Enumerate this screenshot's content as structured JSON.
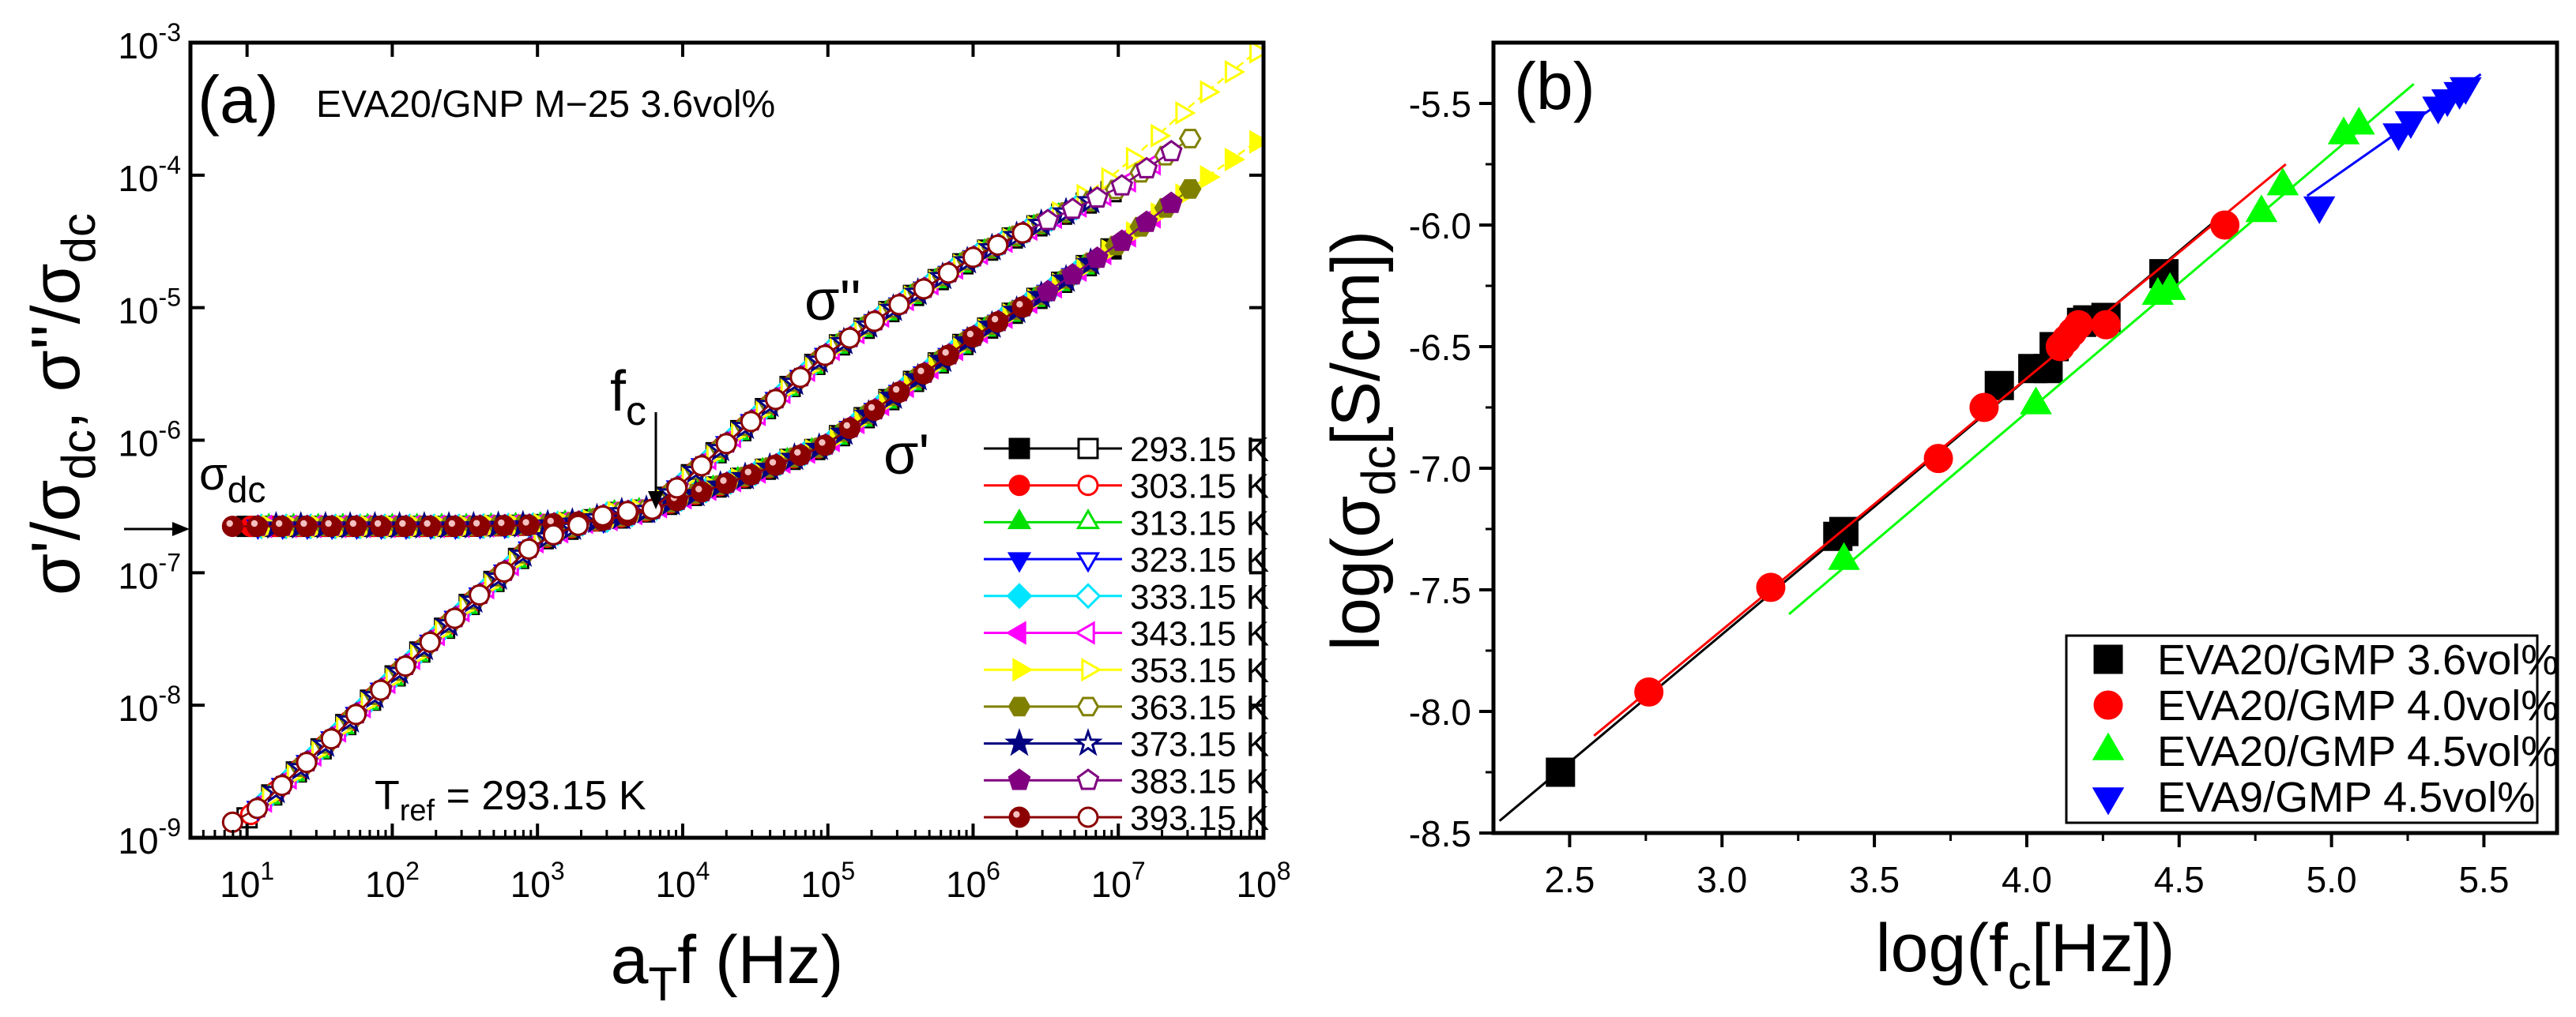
{
  "chart_data": [
    {
      "panel": "(a)",
      "type": "scatter",
      "title": "EVA20/GNP M−25 3.6vol%",
      "xlabel": "a_T f (Hz)",
      "ylabel": "σ'/σdc, σ''/σdc",
      "xscale": "log",
      "yscale": "log",
      "xlim_log10": [
        0.61,
        8
      ],
      "ylim_log10": [
        -9,
        -3
      ],
      "x_ticks": [
        {
          "base": "10",
          "exp": "1",
          "v": 1
        },
        {
          "base": "10",
          "exp": "2",
          "v": 2
        },
        {
          "base": "10",
          "exp": "3",
          "v": 3
        },
        {
          "base": "10",
          "exp": "4",
          "v": 4
        },
        {
          "base": "10",
          "exp": "5",
          "v": 5
        },
        {
          "base": "10",
          "exp": "6",
          "v": 6
        },
        {
          "base": "10",
          "exp": "7",
          "v": 7
        },
        {
          "base": "10",
          "exp": "8",
          "v": 8
        }
      ],
      "y_ticks": [
        {
          "base": "10",
          "exp": "-3",
          "v": -3
        },
        {
          "base": "10",
          "exp": "-4",
          "v": -4
        },
        {
          "base": "10",
          "exp": "-5",
          "v": -5
        },
        {
          "base": "10",
          "exp": "-6",
          "v": -6
        },
        {
          "base": "10",
          "exp": "-7",
          "v": -7
        },
        {
          "base": "10",
          "exp": "-8",
          "v": -8
        },
        {
          "base": "10",
          "exp": "-9",
          "v": -9
        }
      ],
      "annotations": {
        "panel_label": "(a)",
        "sample": "EVA20/GNP M−25 3.6vol%",
        "sigma_imag": "σ''",
        "sigma_real": "σ'",
        "fc": "f",
        "fc_sub": "c",
        "sigma_dc": "σ",
        "sigma_dc_sub": "dc",
        "tref": "T",
        "tref_sub": "ref",
        "tref_value": " = 293.15 K"
      },
      "master_curve": {
        "log_f": [
          0.6,
          1.0,
          1.5,
          2.0,
          2.5,
          3.0,
          3.5,
          3.8,
          4.0,
          4.5,
          5.0,
          5.5,
          6.0,
          6.5,
          7.0,
          7.5,
          8.0
        ],
        "log_sigma_re": [
          -6.65,
          -6.65,
          -6.65,
          -6.65,
          -6.65,
          -6.64,
          -6.6,
          -6.52,
          -6.44,
          -6.25,
          -6.03,
          -5.63,
          -5.22,
          -4.89,
          -4.52,
          -4.1,
          -3.71
        ],
        "log_sigma_im": [
          -8.98,
          -8.85,
          -8.34,
          -7.8,
          -7.27,
          -6.76,
          -6.55,
          -6.52,
          -6.32,
          -5.83,
          -5.34,
          -4.97,
          -4.62,
          -4.35,
          -4.1,
          -3.72,
          -3.4
        ]
      },
      "series": [
        {
          "name": "293.15 K",
          "color": "#000000",
          "marker": "square",
          "log_f_range": [
            1.0,
            7.0
          ]
        },
        {
          "name": "303.15 K",
          "color": "#ff0000",
          "marker": "circle",
          "log_f_range": [
            1.0,
            6.85
          ]
        },
        {
          "name": "313.15 K",
          "color": "#00e000",
          "marker": "triangle-up",
          "log_f_range": [
            1.1,
            6.8
          ]
        },
        {
          "name": "323.15 K",
          "color": "#0000ff",
          "marker": "triangle-down",
          "log_f_range": [
            1.0,
            6.8
          ]
        },
        {
          "name": "333.15 K",
          "color": "#00e5ff",
          "marker": "diamond",
          "log_f_range": [
            1.0,
            6.8
          ]
        },
        {
          "name": "343.15 K",
          "color": "#ff00ff",
          "marker": "triangle-left",
          "log_f_range": [
            1.0,
            7.4
          ]
        },
        {
          "name": "353.15 K",
          "color": "#ffff00",
          "marker": "triangle-right",
          "log_f_range": [
            1.0,
            7.95
          ]
        },
        {
          "name": "363.15 K",
          "color": "#808000",
          "marker": "hexagon",
          "log_f_range": [
            1.2,
            7.5
          ]
        },
        {
          "name": "373.15 K",
          "color": "#000080",
          "marker": "star",
          "log_f_range": [
            1.0,
            6.9
          ]
        },
        {
          "name": "383.15 K",
          "color": "#800080",
          "marker": "pentagon",
          "log_f_range": [
            0.85,
            7.4
          ]
        },
        {
          "name": "393.15 K",
          "color": "#8b0000",
          "marker": "sphere",
          "log_f_range": [
            0.65,
            6.5
          ]
        }
      ],
      "legend": "bottom-right"
    },
    {
      "panel": "(b)",
      "type": "scatter",
      "xlabel": "log(f_c[Hz])",
      "ylabel": "log(σdc[S/cm])",
      "xlim": [
        2.25,
        5.74
      ],
      "ylim": [
        -8.5,
        -5.25
      ],
      "x_ticks": [
        "2.5",
        "3.0",
        "3.5",
        "4.0",
        "4.5",
        "5.0",
        "5.5"
      ],
      "y_ticks": [
        "-5.5",
        "-6.0",
        "-6.5",
        "-7.0",
        "-7.5",
        "-8.0",
        "-8.5"
      ],
      "labels": {
        "panel_label": "(b)",
        "ylabel_pre": "log(σ",
        "ylabel_sub": "dc",
        "ylabel_post": "[S/cm])",
        "xlabel_pre": "log(f",
        "xlabel_sub": "c",
        "xlabel_post": "[Hz])"
      },
      "series": [
        {
          "name": "EVA20/GMP 3.6vol%",
          "color": "#000000",
          "marker": "square",
          "x": [
            2.47,
            3.38,
            3.4,
            3.91,
            4.02,
            4.07,
            4.09,
            4.18,
            4.2,
            4.26,
            4.45
          ],
          "y": [
            -8.25,
            -7.28,
            -7.26,
            -6.66,
            -6.59,
            -6.59,
            -6.5,
            -6.4,
            -6.39,
            -6.38,
            -6.2
          ],
          "fit": [
            [
              2.27,
              -8.45
            ],
            [
              4.65,
              -5.95
            ]
          ]
        },
        {
          "name": "EVA20/GMP 4.0vol%",
          "color": "#ff0000",
          "marker": "circle",
          "x": [
            2.76,
            3.16,
            3.71,
            3.86,
            4.11,
            4.13,
            4.15,
            4.17,
            4.26,
            4.65
          ],
          "y": [
            -7.92,
            -7.49,
            -6.96,
            -6.75,
            -6.5,
            -6.47,
            -6.44,
            -6.41,
            -6.41,
            -6.0
          ],
          "fit": [
            [
              2.58,
              -8.1
            ],
            [
              4.85,
              -5.75
            ]
          ]
        },
        {
          "name": "EVA20/GMP 4.5vol%",
          "color": "#00ff00",
          "marker": "triangle-up",
          "x": [
            3.4,
            4.03,
            4.43,
            4.47,
            4.77,
            4.84,
            5.04,
            5.09
          ],
          "y": [
            -7.38,
            -6.74,
            -6.29,
            -6.27,
            -5.95,
            -5.84,
            -5.63,
            -5.59
          ],
          "fit": [
            [
              3.22,
              -7.6
            ],
            [
              5.27,
              -5.42
            ]
          ]
        },
        {
          "name": "EVA9/GMP 4.5vol%",
          "color": "#0000ff",
          "marker": "triangle-down",
          "x": [
            4.96,
            5.22,
            5.26,
            5.35,
            5.38,
            5.42,
            5.44
          ],
          "y": [
            -5.92,
            -5.62,
            -5.57,
            -5.51,
            -5.48,
            -5.45,
            -5.43
          ],
          "fit": [
            [
              4.92,
              -5.88
            ],
            [
              5.49,
              -5.38
            ]
          ]
        }
      ],
      "legend": "bottom-right"
    }
  ]
}
